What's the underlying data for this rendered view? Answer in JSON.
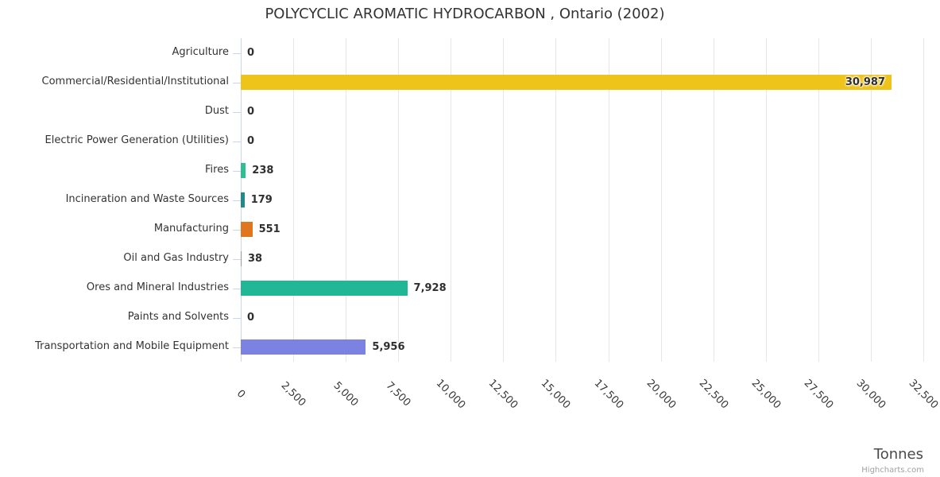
{
  "title": "POLYCYCLIC AROMATIC HYDROCARBON , Ontario (2002)",
  "credits": "Highcharts.com",
  "chart_data": {
    "type": "bar",
    "orientation": "horizontal",
    "title": "POLYCYCLIC AROMATIC HYDROCARBON , Ontario (2002)",
    "xlabel": "Tonnes",
    "ylabel": "",
    "xlim": [
      0,
      32500
    ],
    "tick_interval": 2500,
    "grid": true,
    "legend": false,
    "categories": [
      "Agriculture",
      "Commercial/Residential/Institutional",
      "Dust",
      "Electric Power Generation (Utilities)",
      "Fires",
      "Incineration and Waste Sources",
      "Manufacturing",
      "Oil and Gas Industry",
      "Ores and Mineral Industries",
      "Paints and Solvents",
      "Transportation and Mobile Equipment"
    ],
    "values": [
      0,
      30987,
      0,
      0,
      238,
      179,
      551,
      38,
      7928,
      0,
      5956
    ],
    "value_labels": [
      "0",
      "30,987",
      "0",
      "0",
      "238",
      "179",
      "551",
      "38",
      "7,928",
      "0",
      "5,956"
    ],
    "bar_colors": [
      "#999999",
      "#efc41a",
      "#999999",
      "#999999",
      "#2bbf92",
      "#20898c",
      "#e0761f",
      "#999999",
      "#1fb795",
      "#999999",
      "#7c82e2"
    ],
    "x_tick_labels": [
      "0",
      "2,500",
      "5,000",
      "7,500",
      "10,000",
      "12,500",
      "15,000",
      "17,500",
      "20,000",
      "22,500",
      "25,000",
      "27,500",
      "30,000",
      "32,500"
    ]
  },
  "ui_colors": {
    "gridline": "#e6e6e6",
    "axis_line": "#ccd6eb",
    "title_text": "#333333",
    "category_text": "#333333",
    "data_label_text": "#2f2f2f",
    "x_label_text": "#383838",
    "axis_title_text": "#4a4a4a",
    "credit_text": "#a0a0a0"
  }
}
